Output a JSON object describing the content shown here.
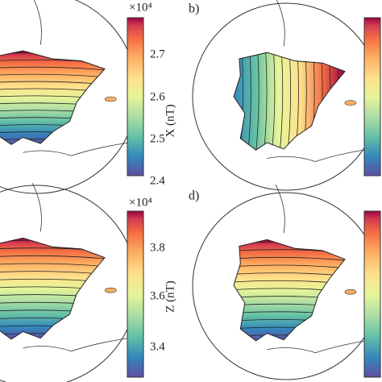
{
  "panels": [
    {
      "exponent": "×10⁴",
      "ticks": [
        "2.7",
        "2.6",
        "2.5",
        "2.4"
      ],
      "unit": "X (nT)"
    },
    {
      "label": "b)"
    },
    {
      "exponent": "×10⁴",
      "ticks": [
        "3.8",
        "3.6",
        "3.4"
      ],
      "unit": "Z (nT)"
    },
    {
      "label": "d)"
    }
  ]
}
